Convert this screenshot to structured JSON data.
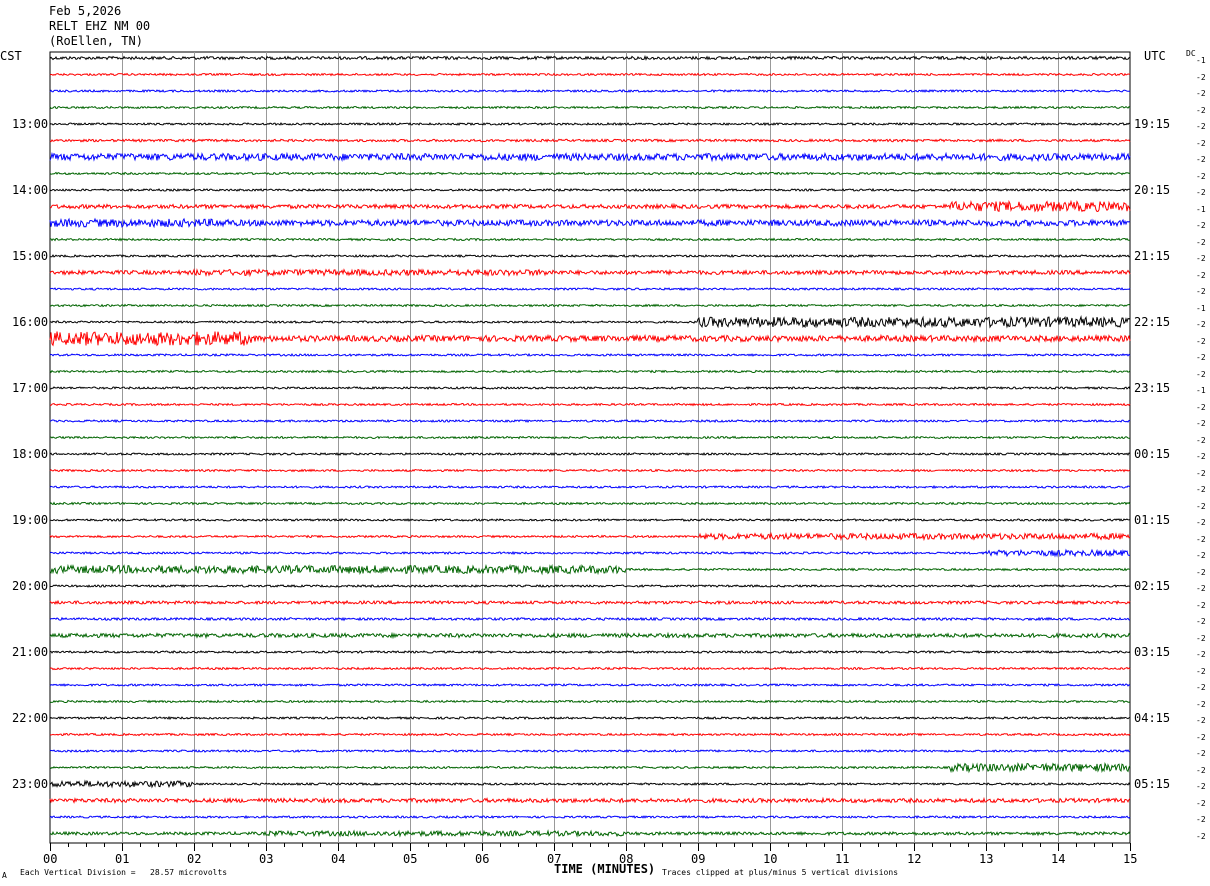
{
  "header": {
    "date": "Feb 5,2026",
    "station": "RELT EHZ NM 00",
    "location": "(RoEllen, TN)"
  },
  "left_tz": "CST",
  "right_tz": "UTC",
  "dc_label": "DC",
  "footer": {
    "scale_note": "Each Vertical Division =   28.57 microvolts",
    "clip_note": "Traces clipped at plus/minus 5 vertical divisions",
    "corner_mark": "A"
  },
  "colors": {
    "trace_cycle": [
      "#000000",
      "#ff0000",
      "#0000ff",
      "#006400"
    ],
    "grid": "#999999"
  },
  "chart_data": {
    "type": "line",
    "xlabel": "TIME (MINUTES)",
    "xlim": [
      0,
      15
    ],
    "x_ticks": [
      "00",
      "01",
      "02",
      "03",
      "04",
      "05",
      "06",
      "07",
      "08",
      "09",
      "10",
      "11",
      "12",
      "13",
      "14",
      "15"
    ],
    "traces_per_hour": 4,
    "minutes_per_trace": 15,
    "left_time_labels": [
      "13:00",
      "14:00",
      "15:00",
      "16:00",
      "17:00",
      "18:00",
      "19:00",
      "20:00",
      "21:00",
      "22:00",
      "23:00"
    ],
    "right_time_labels": [
      "19:15",
      "20:15",
      "21:15",
      "22:15",
      "23:15",
      "00:15",
      "01:15",
      "02:15",
      "03:15",
      "04:15",
      "05:15"
    ],
    "dc_offsets": [
      "-1",
      "-2",
      "-2",
      "-2",
      "-2",
      "-2",
      "-2",
      "-2",
      "-2",
      "-1",
      "-2",
      "-2",
      "-2",
      "-2",
      "-2",
      "-1",
      "-2",
      "-2",
      "-2",
      "-2",
      "-1",
      "-2",
      "-2",
      "-2",
      "-2",
      "-2",
      "-2",
      "-2",
      "-2",
      "-2",
      "-2",
      "-2",
      "-2",
      "-2",
      "-2",
      "-2",
      "-2",
      "-2",
      "-2",
      "-2",
      "-2",
      "-2",
      "-2",
      "-2",
      "-2",
      "-2",
      "-2",
      "-2"
    ],
    "trace_noise": [
      1.5,
      1,
      1,
      1,
      1,
      1.2,
      3.5,
      1,
      1,
      2,
      3,
      1,
      1,
      2,
      1,
      1,
      1,
      3,
      1,
      1,
      1,
      1,
      1,
      1,
      1,
      1,
      1,
      1,
      1,
      1,
      1,
      1,
      1,
      1.5,
      1.2,
      2,
      1,
      1,
      1,
      1,
      1,
      1,
      1,
      1,
      1,
      2,
      1,
      1.5
    ],
    "events": [
      {
        "trace": 6,
        "start_min": 0,
        "end_min": 5,
        "amp": 3
      },
      {
        "trace": 9,
        "start_min": 12.5,
        "end_min": 15,
        "amp": 5
      },
      {
        "trace": 10,
        "start_min": 0,
        "end_min": 2.5,
        "amp": 4
      },
      {
        "trace": 13,
        "start_min": 2,
        "end_min": 7,
        "amp": 3
      },
      {
        "trace": 16,
        "start_min": 9,
        "end_min": 15,
        "amp": 5
      },
      {
        "trace": 17,
        "start_min": 0,
        "end_min": 2.8,
        "amp": 7
      },
      {
        "trace": 29,
        "start_min": 9,
        "end_min": 15,
        "amp": 3
      },
      {
        "trace": 30,
        "start_min": 13,
        "end_min": 15,
        "amp": 3
      },
      {
        "trace": 31,
        "start_min": 0,
        "end_min": 8,
        "amp": 4
      },
      {
        "trace": 43,
        "start_min": 12.5,
        "end_min": 15,
        "amp": 4
      },
      {
        "trace": 44,
        "start_min": 0,
        "end_min": 2,
        "amp": 3
      },
      {
        "trace": 47,
        "start_min": 3,
        "end_min": 8,
        "amp": 2.5
      }
    ]
  }
}
